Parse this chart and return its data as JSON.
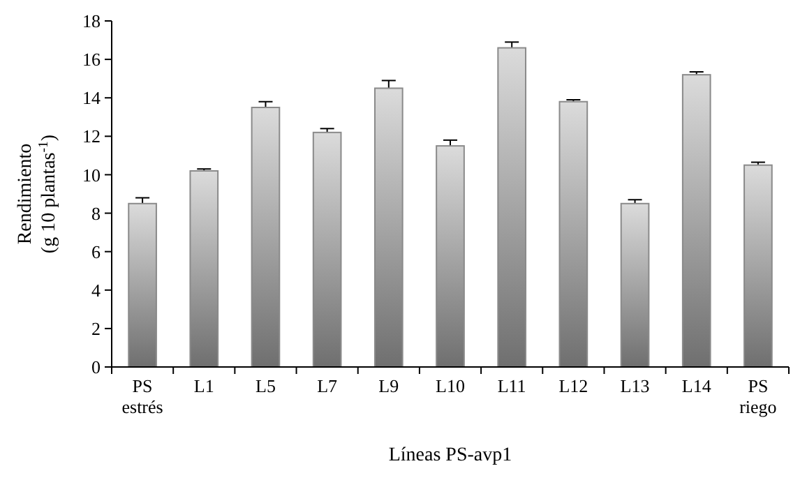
{
  "chart_data": {
    "type": "bar",
    "xlabel": "Líneas PS-avp1",
    "ylabel": "Rendimiento\n(g 10 plantas$^{-1}$)",
    "categories": [
      "PS estrés",
      "L1",
      "L5",
      "L7",
      "L9",
      "L10",
      "L11",
      "L12",
      "L13",
      "L14",
      "PS riego"
    ],
    "values": [
      8.5,
      10.2,
      13.5,
      12.2,
      14.5,
      11.5,
      16.6,
      13.8,
      8.5,
      15.2,
      10.5
    ],
    "errors": [
      0.3,
      0.1,
      0.3,
      0.2,
      0.4,
      0.3,
      0.3,
      0.1,
      0.2,
      0.15,
      0.15
    ],
    "color": "#8a8a8a",
    "ylim": [
      0,
      18
    ],
    "yticks": [
      0,
      2,
      4,
      6,
      8,
      10,
      12,
      14,
      16,
      18
    ],
    "grid": false
  }
}
